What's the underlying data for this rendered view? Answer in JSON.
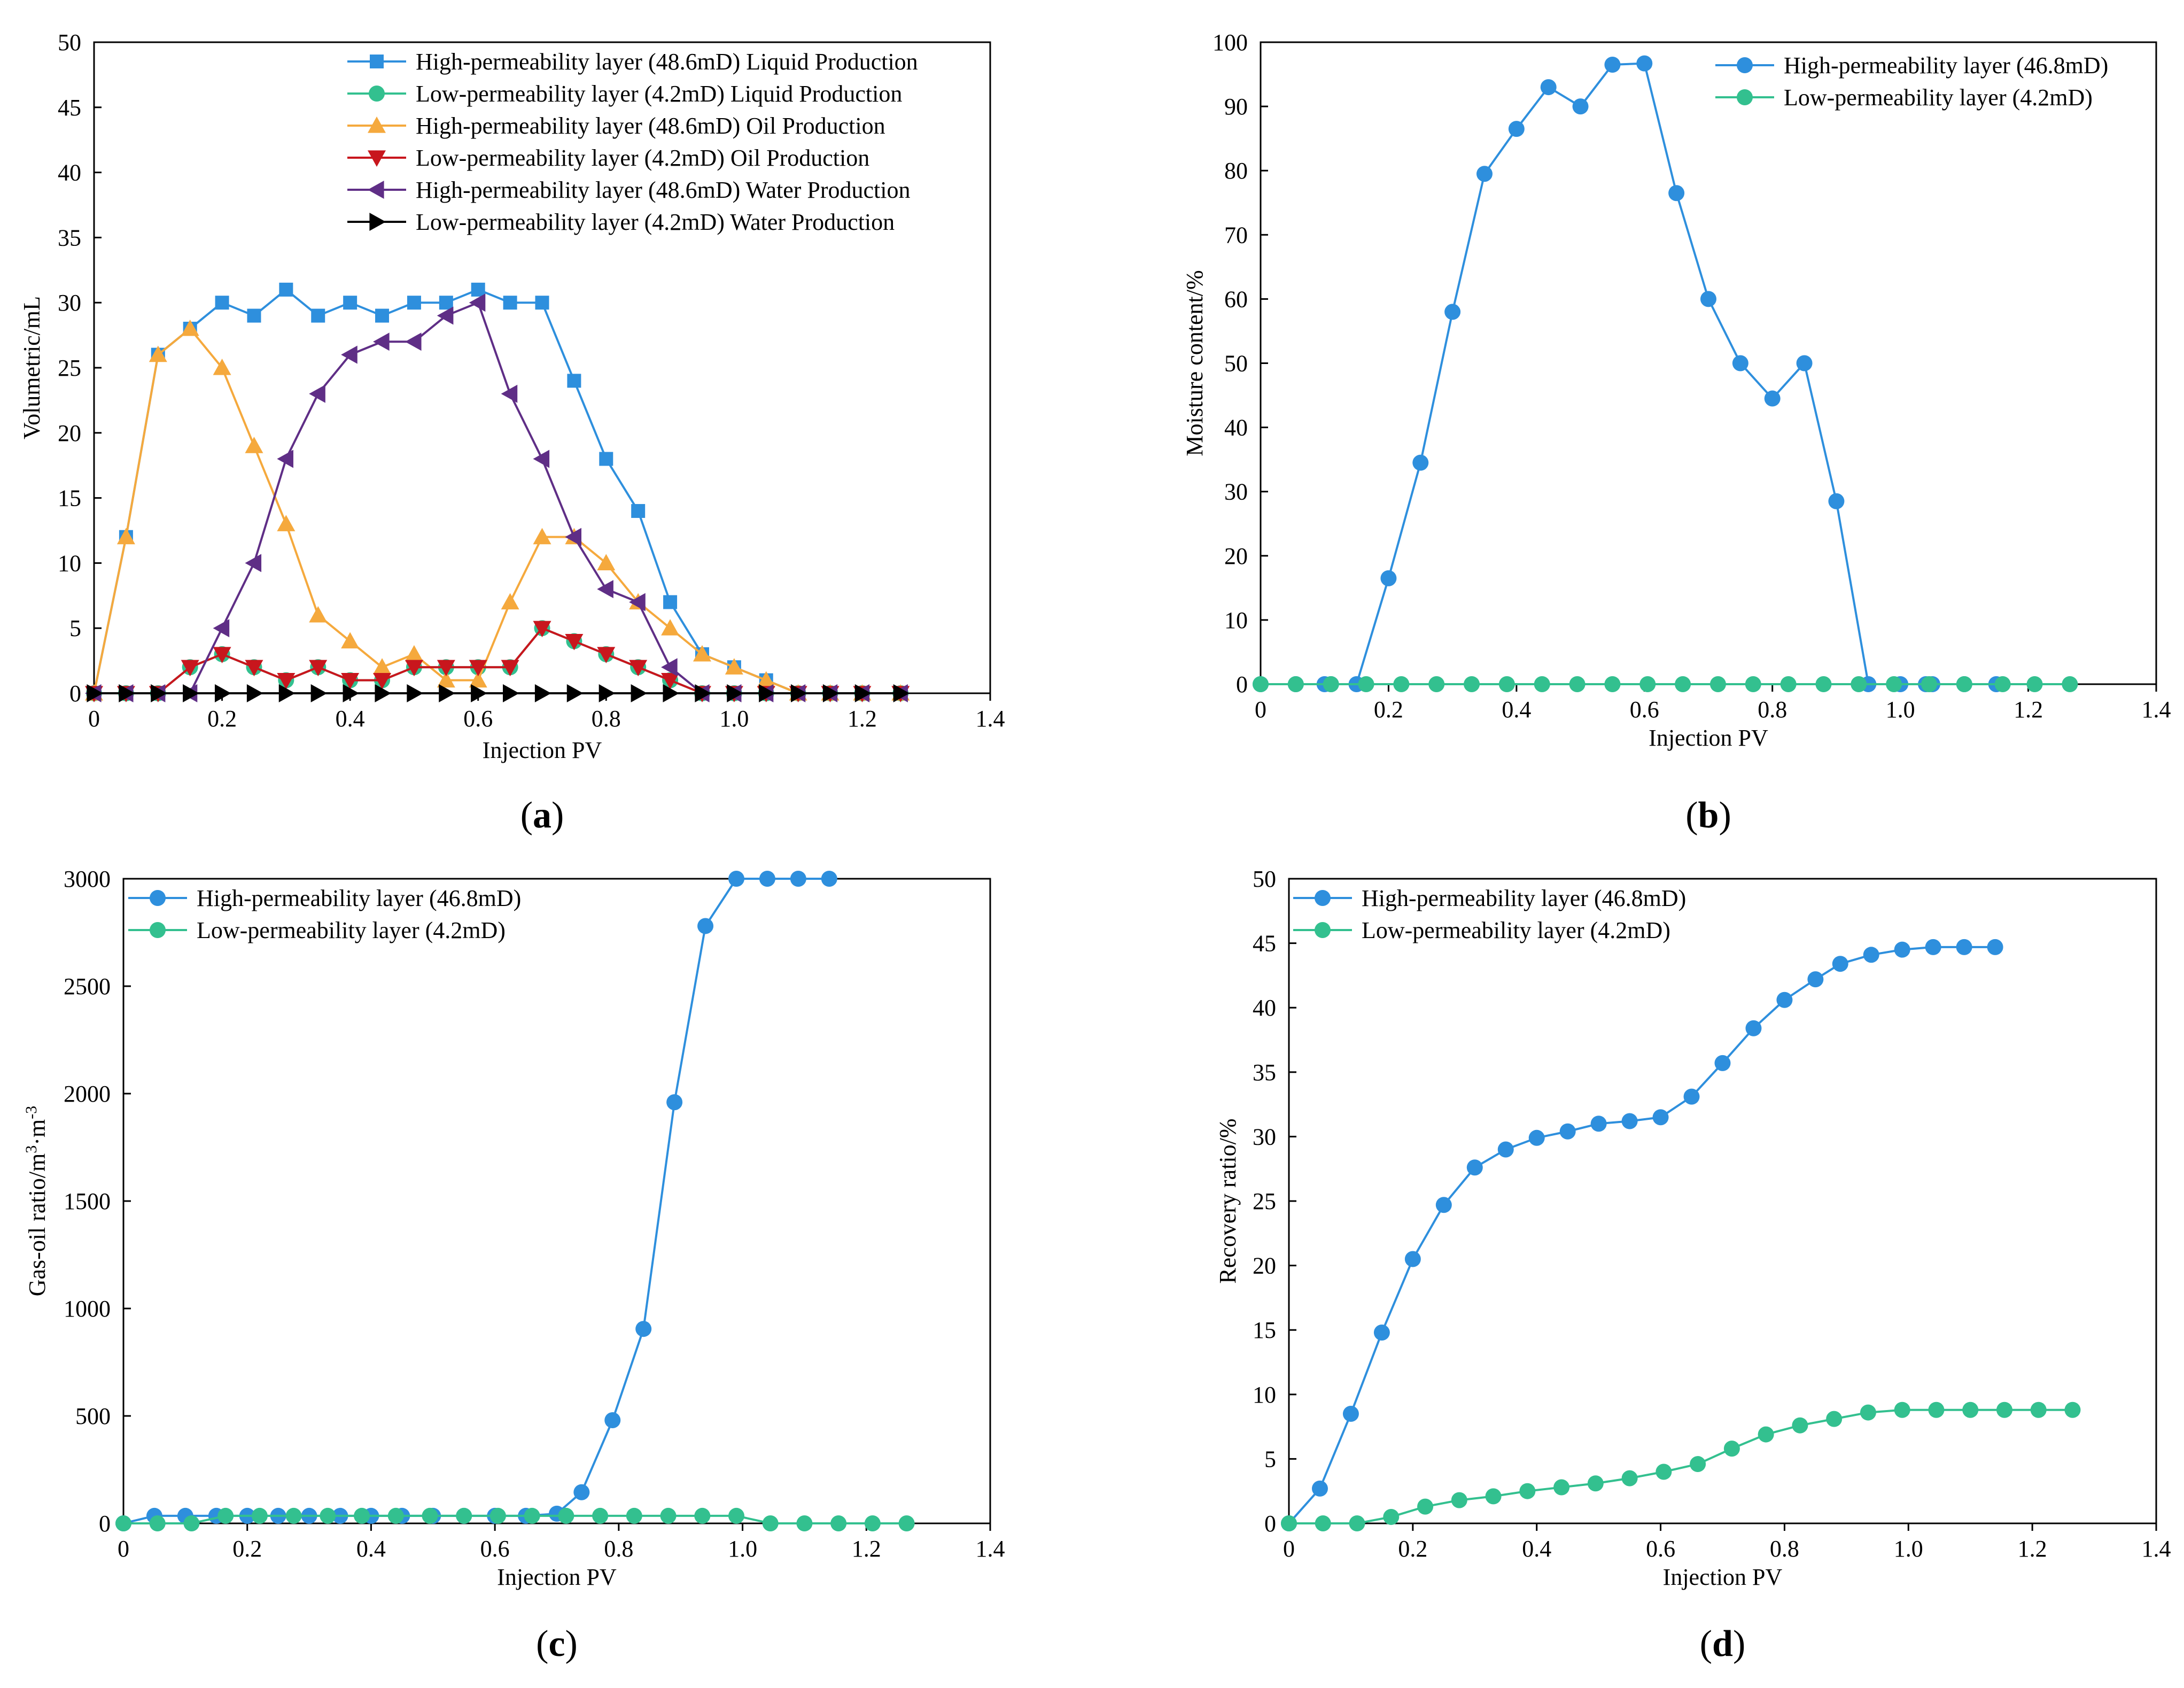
{
  "chart_data": [
    {
      "type": "line",
      "panel_label": "(a)",
      "panel_open": "(",
      "panel_letter": "a",
      "panel_close": ")",
      "xlabel": "Injection PV",
      "ylabel": "Volumetric/mL",
      "xlim": [
        0,
        1.4
      ],
      "ylim": [
        0,
        50
      ],
      "xticks": [
        "0",
        "0.2",
        "0.4",
        "0.6",
        "0.8",
        "1.0",
        "1.2",
        "1.4"
      ],
      "yticks": [
        "0",
        "5",
        "10",
        "15",
        "20",
        "25",
        "30",
        "35",
        "40",
        "45",
        "50"
      ],
      "legend_position": "top-right",
      "series": [
        {
          "name": "High-permeability layer (48.6mD) Liquid Production",
          "color": "#2e8fdd",
          "marker": "square",
          "x": [
            0,
            0.05,
            0.1,
            0.15,
            0.2,
            0.25,
            0.3,
            0.35,
            0.4,
            0.45,
            0.5,
            0.55,
            0.6,
            0.65,
            0.7,
            0.75,
            0.8,
            0.85,
            0.9,
            0.95,
            1.0,
            1.05,
            1.1,
            1.15,
            1.2,
            1.26
          ],
          "y": [
            0,
            12,
            26,
            28,
            30,
            29,
            31,
            29,
            30,
            29,
            30,
            30,
            31,
            30,
            30,
            24,
            18,
            14,
            7,
            3,
            2,
            1,
            0,
            0,
            0,
            0
          ]
        },
        {
          "name": "Low-permeability layer (4.2mD) Liquid Production",
          "color": "#33c08f",
          "marker": "circle",
          "x": [
            0,
            0.05,
            0.1,
            0.15,
            0.2,
            0.25,
            0.3,
            0.35,
            0.4,
            0.45,
            0.5,
            0.55,
            0.6,
            0.65,
            0.7,
            0.75,
            0.8,
            0.85,
            0.9,
            0.95,
            1.0,
            1.05,
            1.1,
            1.15,
            1.2,
            1.26
          ],
          "y": [
            0,
            0,
            0,
            2,
            3,
            2,
            1,
            2,
            1,
            1,
            2,
            2,
            2,
            2,
            5,
            4,
            3,
            2,
            1,
            0,
            0,
            0,
            0,
            0,
            0,
            0
          ]
        },
        {
          "name": "High-permeability layer (48.6mD) Oil Production",
          "color": "#f5a93d",
          "marker": "triangle-up",
          "x": [
            0,
            0.05,
            0.1,
            0.15,
            0.2,
            0.25,
            0.3,
            0.35,
            0.4,
            0.45,
            0.5,
            0.55,
            0.6,
            0.65,
            0.7,
            0.75,
            0.8,
            0.85,
            0.9,
            0.95,
            1.0,
            1.05,
            1.1,
            1.15,
            1.2,
            1.26
          ],
          "y": [
            0,
            12,
            26,
            28,
            25,
            19,
            13,
            6,
            4,
            2,
            3,
            1,
            1,
            7,
            12,
            12,
            10,
            7,
            5,
            3,
            2,
            1,
            0,
            0,
            0,
            0
          ]
        },
        {
          "name": "Low-permeability layer (4.2mD) Oil Production",
          "color": "#c8161d",
          "marker": "triangle-down",
          "x": [
            0,
            0.05,
            0.1,
            0.15,
            0.2,
            0.25,
            0.3,
            0.35,
            0.4,
            0.45,
            0.5,
            0.55,
            0.6,
            0.65,
            0.7,
            0.75,
            0.8,
            0.85,
            0.9,
            0.95,
            1.0,
            1.05,
            1.1,
            1.15,
            1.2,
            1.26
          ],
          "y": [
            0,
            0,
            0,
            2,
            3,
            2,
            1,
            2,
            1,
            1,
            2,
            2,
            2,
            2,
            5,
            4,
            3,
            2,
            1,
            0,
            0,
            0,
            0,
            0,
            0,
            0
          ]
        },
        {
          "name": "High-permeability layer (48.6mD) Water Production",
          "color": "#5f2e86",
          "marker": "triangle-left",
          "x": [
            0,
            0.05,
            0.1,
            0.15,
            0.2,
            0.25,
            0.3,
            0.35,
            0.4,
            0.45,
            0.5,
            0.55,
            0.6,
            0.65,
            0.7,
            0.75,
            0.8,
            0.85,
            0.9,
            0.95,
            1.0,
            1.05,
            1.1,
            1.15,
            1.2,
            1.26
          ],
          "y": [
            0,
            0,
            0,
            0,
            5,
            10,
            18,
            23,
            26,
            27,
            27,
            29,
            30,
            23,
            18,
            12,
            8,
            7,
            2,
            0,
            0,
            0,
            0,
            0,
            0,
            0
          ]
        },
        {
          "name": "Low-permeability layer (4.2mD) Water Production",
          "color": "#000000",
          "marker": "triangle-right",
          "x": [
            0,
            0.05,
            0.1,
            0.15,
            0.2,
            0.25,
            0.3,
            0.35,
            0.4,
            0.45,
            0.5,
            0.55,
            0.6,
            0.65,
            0.7,
            0.75,
            0.8,
            0.85,
            0.9,
            0.95,
            1.0,
            1.05,
            1.1,
            1.15,
            1.2,
            1.26
          ],
          "y": [
            0,
            0,
            0,
            0,
            0,
            0,
            0,
            0,
            0,
            0,
            0,
            0,
            0,
            0,
            0,
            0,
            0,
            0,
            0,
            0,
            0,
            0,
            0,
            0,
            0,
            0
          ]
        }
      ]
    },
    {
      "type": "line",
      "panel_label": "(b)",
      "panel_open": "(",
      "panel_letter": "b",
      "panel_close": ")",
      "xlabel": "Injection PV",
      "ylabel": "Moisture content/%",
      "xlim": [
        0,
        1.4
      ],
      "ylim": [
        0,
        100
      ],
      "xticks": [
        "0",
        "0.2",
        "0.4",
        "0.6",
        "0.8",
        "1.0",
        "1.2",
        "1.4"
      ],
      "yticks": [
        "0",
        "10",
        "20",
        "30",
        "40",
        "50",
        "60",
        "70",
        "80",
        "90",
        "100"
      ],
      "legend_position": "top-right",
      "series": [
        {
          "name": "High-permeability layer (46.8mD)",
          "color": "#2e8fdd",
          "marker": "circle",
          "x": [
            0,
            0.055,
            0.1,
            0.11,
            0.15,
            0.2,
            0.25,
            0.3,
            0.35,
            0.4,
            0.45,
            0.5,
            0.55,
            0.6,
            0.65,
            0.7,
            0.75,
            0.8,
            0.85,
            0.9,
            0.95,
            1.0,
            1.04,
            1.05,
            1.1,
            1.15
          ],
          "y": [
            0,
            0,
            0,
            0,
            0,
            16.5,
            34.5,
            58,
            79.5,
            86.5,
            93,
            90,
            96.5,
            96.7,
            76.5,
            60,
            50,
            44.5,
            50,
            28.5,
            0,
            0,
            0,
            0,
            0,
            0
          ]
        },
        {
          "name": "Low-permeability layer (4.2mD)",
          "color": "#33c08f",
          "marker": "circle",
          "x": [
            0,
            0.055,
            0.11,
            0.165,
            0.22,
            0.275,
            0.33,
            0.385,
            0.44,
            0.495,
            0.55,
            0.605,
            0.66,
            0.715,
            0.77,
            0.825,
            0.88,
            0.935,
            0.99,
            1.045,
            1.1,
            1.16,
            1.21,
            1.265
          ],
          "y": [
            0,
            0,
            0,
            0,
            0,
            0,
            0,
            0,
            0,
            0,
            0,
            0,
            0,
            0,
            0,
            0,
            0,
            0,
            0,
            0,
            0,
            0,
            0,
            0
          ]
        }
      ]
    },
    {
      "type": "line",
      "panel_label": "(c)",
      "panel_open": "(",
      "panel_letter": "c",
      "panel_close": ")",
      "xlabel": "Injection PV",
      "ylabel": "Gas-oil ratio/m³·m⁻³",
      "ylabel_main": "Gas-oil ratio/m",
      "ylabel_sup1": "3",
      "ylabel_mid": "·m",
      "ylabel_sup2": "-3",
      "xlim": [
        0,
        1.4
      ],
      "ylim": [
        0,
        3000
      ],
      "xticks": [
        "0",
        "0.2",
        "0.4",
        "0.6",
        "0.8",
        "1.0",
        "1.2",
        "1.4"
      ],
      "yticks": [
        "0",
        "500",
        "1000",
        "1500",
        "2000",
        "2500",
        "3000"
      ],
      "legend_position": "top-left",
      "series": [
        {
          "name": "High-permeability layer (46.8mD)",
          "color": "#2e8fdd",
          "marker": "circle",
          "x": [
            0,
            0.05,
            0.1,
            0.15,
            0.2,
            0.25,
            0.3,
            0.35,
            0.4,
            0.45,
            0.5,
            0.55,
            0.6,
            0.65,
            0.7,
            0.74,
            0.79,
            0.84,
            0.89,
            0.94,
            0.99,
            1.04,
            1.09,
            1.14
          ],
          "y": [
            0,
            35,
            35,
            35,
            35,
            35,
            35,
            35,
            35,
            35,
            35,
            35,
            35,
            35,
            45,
            145,
            480,
            905,
            1960,
            2780,
            3000,
            3000,
            3000,
            3000
          ]
        },
        {
          "name": "Low-permeability layer (4.2mD)",
          "color": "#33c08f",
          "marker": "circle",
          "x": [
            0,
            0.055,
            0.11,
            0.165,
            0.22,
            0.275,
            0.33,
            0.385,
            0.44,
            0.495,
            0.55,
            0.605,
            0.66,
            0.715,
            0.77,
            0.825,
            0.88,
            0.935,
            0.99,
            1.045,
            1.1,
            1.155,
            1.21,
            1.265
          ],
          "y": [
            0,
            0,
            0,
            35,
            35,
            35,
            35,
            35,
            35,
            35,
            35,
            35,
            35,
            35,
            35,
            35,
            35,
            35,
            35,
            0,
            0,
            0,
            0,
            0
          ]
        }
      ]
    },
    {
      "type": "line",
      "panel_label": "(d)",
      "panel_open": "(",
      "panel_letter": "d",
      "panel_close": ")",
      "xlabel": "Injection PV",
      "ylabel": "Recovery ratio/%",
      "xlim": [
        0,
        1.4
      ],
      "ylim": [
        0,
        50
      ],
      "xticks": [
        "0",
        "0.2",
        "0.4",
        "0.6",
        "0.8",
        "1.0",
        "1.2",
        "1.4"
      ],
      "yticks": [
        "0",
        "5",
        "10",
        "15",
        "20",
        "25",
        "30",
        "35",
        "40",
        "45",
        "50"
      ],
      "legend_position": "top-left",
      "series": [
        {
          "name": "High-permeability layer (46.8mD)",
          "color": "#2e8fdd",
          "marker": "circle",
          "x": [
            0,
            0.05,
            0.1,
            0.15,
            0.2,
            0.25,
            0.3,
            0.35,
            0.4,
            0.45,
            0.5,
            0.55,
            0.6,
            0.65,
            0.7,
            0.75,
            0.8,
            0.85,
            0.89,
            0.94,
            0.99,
            1.04,
            1.09,
            1.14
          ],
          "y": [
            0,
            2.7,
            8.5,
            14.8,
            20.5,
            24.7,
            27.6,
            29,
            29.9,
            30.4,
            31,
            31.2,
            31.5,
            33.1,
            35.7,
            38.4,
            40.6,
            42.2,
            43.4,
            44.1,
            44.5,
            44.7,
            44.7,
            44.7
          ]
        },
        {
          "name": "Low-permeability layer (4.2mD)",
          "color": "#33c08f",
          "marker": "circle",
          "x": [
            0,
            0.055,
            0.11,
            0.165,
            0.22,
            0.275,
            0.33,
            0.385,
            0.44,
            0.495,
            0.55,
            0.605,
            0.66,
            0.715,
            0.77,
            0.825,
            0.88,
            0.935,
            0.99,
            1.045,
            1.1,
            1.155,
            1.21,
            1.265
          ],
          "y": [
            0,
            0,
            0,
            0.5,
            1.3,
            1.8,
            2.1,
            2.5,
            2.8,
            3.1,
            3.5,
            4.0,
            4.6,
            5.8,
            6.9,
            7.6,
            8.1,
            8.6,
            8.8,
            8.8,
            8.8,
            8.8,
            8.8,
            8.8
          ]
        }
      ]
    }
  ]
}
